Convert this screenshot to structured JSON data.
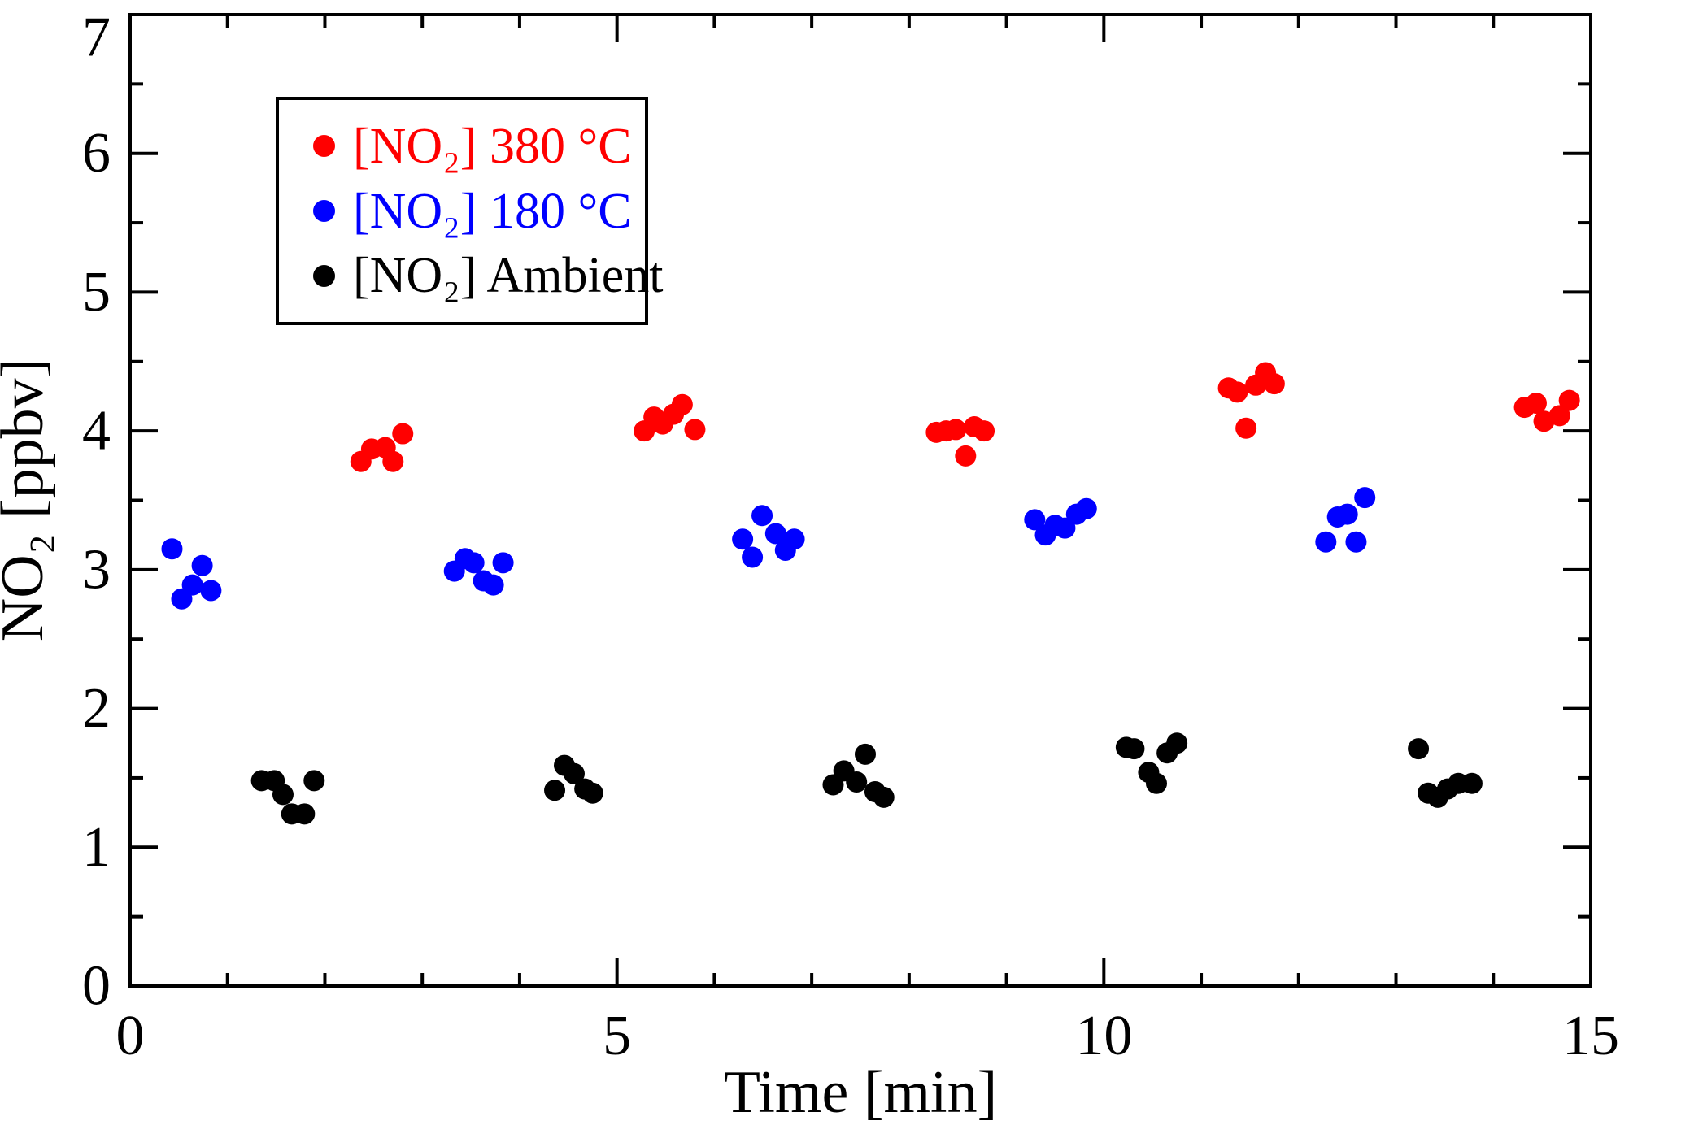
{
  "figure": {
    "background": "#ffffff"
  },
  "chart_data": {
    "type": "scatter",
    "title": "",
    "xlabel": "Time [min]",
    "ylabel": "NO₂ [ppbv]",
    "xlim": [
      0,
      15
    ],
    "ylim": [
      0,
      7
    ],
    "x_major_ticks": [
      0,
      5,
      10,
      15
    ],
    "x_minor_step": 1,
    "y_major_ticks": [
      0,
      1,
      2,
      3,
      4,
      5,
      6,
      7
    ],
    "y_minor_step": 0.5,
    "grid": false,
    "legend_position": "top-left",
    "marker": "circle",
    "series": [
      {
        "name": "[NO₂] 380 °C",
        "color": "#ff0000",
        "points": [
          [
            2.37,
            3.78
          ],
          [
            2.48,
            3.87
          ],
          [
            2.62,
            3.88
          ],
          [
            2.7,
            3.78
          ],
          [
            2.8,
            3.98
          ],
          [
            5.28,
            4.0
          ],
          [
            5.38,
            4.1
          ],
          [
            5.47,
            4.05
          ],
          [
            5.58,
            4.12
          ],
          [
            5.67,
            4.19
          ],
          [
            5.8,
            4.01
          ],
          [
            8.28,
            3.99
          ],
          [
            8.38,
            4.0
          ],
          [
            8.48,
            4.01
          ],
          [
            8.58,
            3.82
          ],
          [
            8.67,
            4.03
          ],
          [
            8.77,
            4.0
          ],
          [
            11.28,
            4.31
          ],
          [
            11.37,
            4.28
          ],
          [
            11.46,
            4.02
          ],
          [
            11.56,
            4.33
          ],
          [
            11.66,
            4.42
          ],
          [
            11.75,
            4.34
          ],
          [
            14.32,
            4.17
          ],
          [
            14.44,
            4.2
          ],
          [
            14.52,
            4.07
          ],
          [
            14.68,
            4.11
          ],
          [
            14.78,
            4.22
          ]
        ]
      },
      {
        "name": "[NO₂] 180 °C",
        "color": "#0000ff",
        "points": [
          [
            0.43,
            3.15
          ],
          [
            0.53,
            2.79
          ],
          [
            0.64,
            2.89
          ],
          [
            0.74,
            3.03
          ],
          [
            0.83,
            2.85
          ],
          [
            3.33,
            2.99
          ],
          [
            3.44,
            3.08
          ],
          [
            3.53,
            3.05
          ],
          [
            3.63,
            2.92
          ],
          [
            3.73,
            2.89
          ],
          [
            3.83,
            3.05
          ],
          [
            6.29,
            3.22
          ],
          [
            6.39,
            3.09
          ],
          [
            6.49,
            3.39
          ],
          [
            6.63,
            3.26
          ],
          [
            6.73,
            3.14
          ],
          [
            6.82,
            3.22
          ],
          [
            9.29,
            3.36
          ],
          [
            9.4,
            3.25
          ],
          [
            9.5,
            3.32
          ],
          [
            9.6,
            3.3
          ],
          [
            9.72,
            3.4
          ],
          [
            9.82,
            3.44
          ],
          [
            12.28,
            3.2
          ],
          [
            12.4,
            3.38
          ],
          [
            12.5,
            3.4
          ],
          [
            12.59,
            3.2
          ],
          [
            12.68,
            3.52
          ]
        ]
      },
      {
        "name": "[NO₂] Ambient",
        "color": "#000000",
        "points": [
          [
            1.35,
            1.48
          ],
          [
            1.48,
            1.48
          ],
          [
            1.57,
            1.38
          ],
          [
            1.66,
            1.24
          ],
          [
            1.79,
            1.24
          ],
          [
            1.89,
            1.48
          ],
          [
            4.36,
            1.41
          ],
          [
            4.46,
            1.59
          ],
          [
            4.56,
            1.53
          ],
          [
            4.67,
            1.42
          ],
          [
            4.75,
            1.39
          ],
          [
            7.22,
            1.45
          ],
          [
            7.33,
            1.55
          ],
          [
            7.46,
            1.47
          ],
          [
            7.55,
            1.67
          ],
          [
            7.65,
            1.4
          ],
          [
            7.74,
            1.36
          ],
          [
            10.23,
            1.72
          ],
          [
            10.31,
            1.71
          ],
          [
            10.46,
            1.54
          ],
          [
            10.54,
            1.46
          ],
          [
            10.65,
            1.68
          ],
          [
            10.75,
            1.75
          ],
          [
            13.23,
            1.71
          ],
          [
            13.33,
            1.39
          ],
          [
            13.43,
            1.36
          ],
          [
            13.53,
            1.42
          ],
          [
            13.64,
            1.46
          ],
          [
            13.78,
            1.46
          ]
        ]
      }
    ]
  }
}
